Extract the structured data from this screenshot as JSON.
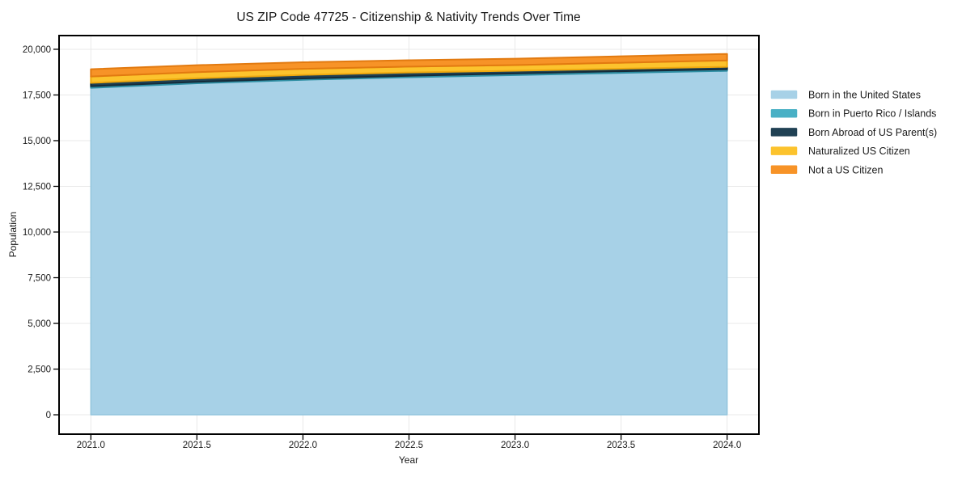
{
  "page": {
    "background": "#ffffff"
  },
  "chart_data": {
    "type": "area",
    "stacked": true,
    "title": "US ZIP Code 47725 - Citizenship & Nativity Trends Over Time",
    "xlabel": "Year",
    "ylabel": "Population",
    "x": [
      2021.0,
      2021.5,
      2022.0,
      2022.5,
      2023.0,
      2023.5,
      2024.0
    ],
    "x_tick_labels": [
      "2021.0",
      "2021.5",
      "2022.0",
      "2022.5",
      "2023.0",
      "2023.5",
      "2024.0"
    ],
    "y_ticks": [
      0,
      2500,
      5000,
      7500,
      10000,
      12500,
      15000,
      17500,
      20000
    ],
    "y_tick_labels": [
      "0",
      "2,500",
      "5,000",
      "7,500",
      "10,000",
      "12,500",
      "15,000",
      "17,500",
      "20,000"
    ],
    "xlim": [
      2020.85,
      2024.15
    ],
    "ylim": [
      -1060,
      20750
    ],
    "grid": true,
    "grid_color": "#e9e9e9",
    "spine_color": "#000000",
    "legend_position": "right",
    "series": [
      {
        "name": "Born in the United States",
        "fill": "#a7d1e7",
        "edge": "#93c5dd",
        "values": [
          17890,
          18140,
          18330,
          18470,
          18590,
          18710,
          18820
        ]
      },
      {
        "name": "Born in Puerto Rico / Islands",
        "fill": "#49b0c5",
        "edge": "#2e8ea3",
        "values": [
          90,
          80,
          75,
          80,
          85,
          90,
          90
        ]
      },
      {
        "name": "Born Abroad of US Parent(s)",
        "fill": "#204154",
        "edge": "#152c3a",
        "values": [
          180,
          190,
          195,
          180,
          150,
          135,
          130
        ]
      },
      {
        "name": "Naturalized US Citizen",
        "fill": "#fcc32d",
        "edge": "#efa90f",
        "values": [
          350,
          340,
          330,
          320,
          310,
          330,
          350
        ]
      },
      {
        "name": "Not a US Citizen",
        "fill": "#f79327",
        "edge": "#e27a10",
        "values": [
          400,
          380,
          360,
          350,
          350,
          350,
          355
        ]
      }
    ]
  }
}
